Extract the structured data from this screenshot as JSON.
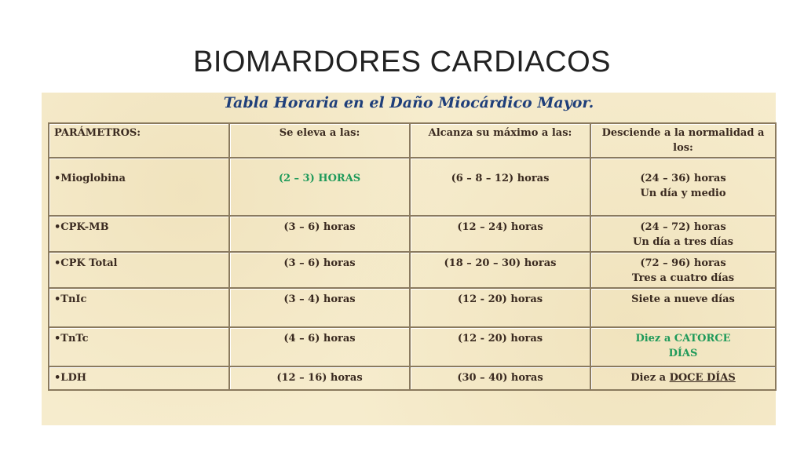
{
  "slide": {
    "title": "BIOMARDORES CARDIACOS"
  },
  "table": {
    "title": "Tabla Horaria en el Daño Miocárdico Mayor.",
    "headers": {
      "param": "PARÁMETROS:",
      "rise": "Se eleva a las:",
      "peak": "Alcanza su máximo a las:",
      "normal": "Desciende a la normalidad a los:"
    },
    "rows": [
      {
        "param": "•Mioglobina",
        "rise": "(2 – 3) HORAS",
        "peak": "(6 – 8 – 12) horas",
        "normal_line1": "(24 – 36) horas",
        "normal_line2": "Un día y medio"
      },
      {
        "param": "•CPK-MB",
        "rise": "(3 – 6) horas",
        "peak": "(12 – 24) horas",
        "normal_line1": "(24 – 72) horas",
        "normal_line2": "Un día a tres días"
      },
      {
        "param": "•CPK Total",
        "rise": "(3 – 6) horas",
        "peak": "(18 – 20 – 30) horas",
        "normal_line1": "(72 – 96) horas",
        "normal_line2": "Tres a cuatro días"
      },
      {
        "param": "•TnIc",
        "rise": "(3 – 4) horas",
        "peak": "(12 - 20) horas",
        "normal_line1": "Siete a nueve días"
      },
      {
        "param": "•TnTc",
        "rise": "(4 – 6) horas",
        "peak": "(12 - 20) horas",
        "normal_line1": "Diez a CATORCE",
        "normal_line2": "DÍAS"
      },
      {
        "param": "•LDH",
        "rise": "(12 – 16) horas",
        "peak": "(30 – 40) horas",
        "normal_prefix": "Diez a ",
        "normal_emph": "DOCE DÍAS"
      }
    ],
    "colors": {
      "highlight_green": "#1f9a5a",
      "title_blue": "#1f3f7a",
      "panel_background": "#f6eccd"
    }
  }
}
